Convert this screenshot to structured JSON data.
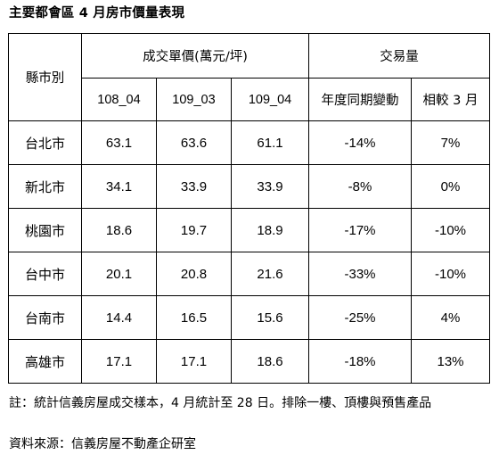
{
  "title": "主要都會區 4 月房市價量表現",
  "table": {
    "header": {
      "city": "縣市別",
      "price_group": "成交單價(萬元/坪)",
      "volume_group": "交易量",
      "price_cols": [
        "108_04",
        "109_03",
        "109_04"
      ],
      "volume_cols": [
        "年度同期變動",
        "相較 3 月"
      ]
    },
    "rows": [
      {
        "city": "台北市",
        "p1": "63.1",
        "p2": "63.6",
        "p3": "61.1",
        "yoy": "-14%",
        "mom": "7%"
      },
      {
        "city": "新北市",
        "p1": "34.1",
        "p2": "33.9",
        "p3": "33.9",
        "yoy": "-8%",
        "mom": "0%"
      },
      {
        "city": "桃園市",
        "p1": "18.6",
        "p2": "19.7",
        "p3": "18.9",
        "yoy": "-17%",
        "mom": "-10%"
      },
      {
        "city": "台中市",
        "p1": "20.1",
        "p2": "20.8",
        "p3": "21.6",
        "yoy": "-33%",
        "mom": "-10%"
      },
      {
        "city": "台南市",
        "p1": "14.4",
        "p2": "16.5",
        "p3": "15.6",
        "yoy": "-25%",
        "mom": "4%"
      },
      {
        "city": "高雄市",
        "p1": "17.1",
        "p2": "17.1",
        "p3": "18.6",
        "yoy": "-18%",
        "mom": "13%"
      }
    ]
  },
  "note": "註：統計信義房屋成交樣本，4 月統計至 28 日。排除一樓、頂樓與預售產品",
  "source": "資料來源：信義房屋不動產企研室"
}
